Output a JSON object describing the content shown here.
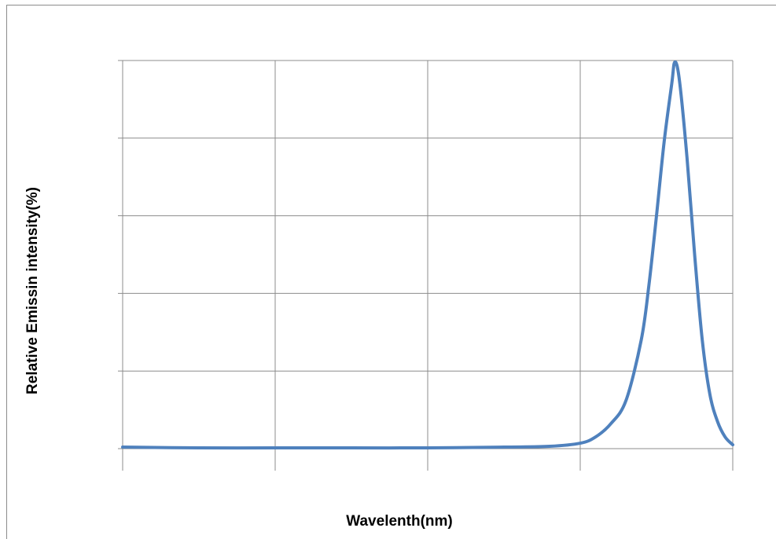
{
  "chart_data": {
    "type": "line",
    "title": "",
    "xlabel": "Wavelenth(nm)",
    "ylabel": "Relative Emissin intensity(%)",
    "xlim": [
      0,
      4
    ],
    "ylim": [
      0,
      5
    ],
    "grid": true,
    "legend": "none",
    "x_tick_labels_visible": false,
    "y_tick_labels_visible": false,
    "series": [
      {
        "color": "#4f81bd",
        "x": [
          0.0,
          0.5,
          1.0,
          1.5,
          2.0,
          2.5,
          2.8,
          3.0,
          3.1,
          3.2,
          3.3,
          3.4,
          3.45,
          3.5,
          3.55,
          3.6,
          3.62,
          3.65,
          3.7,
          3.75,
          3.8,
          3.85,
          3.9,
          3.95,
          4.0
        ],
        "y": [
          0.02,
          0.01,
          0.01,
          0.01,
          0.01,
          0.02,
          0.03,
          0.07,
          0.15,
          0.32,
          0.62,
          1.4,
          2.1,
          3.0,
          3.95,
          4.7,
          4.98,
          4.75,
          3.75,
          2.5,
          1.4,
          0.7,
          0.35,
          0.15,
          0.05
        ]
      }
    ]
  }
}
